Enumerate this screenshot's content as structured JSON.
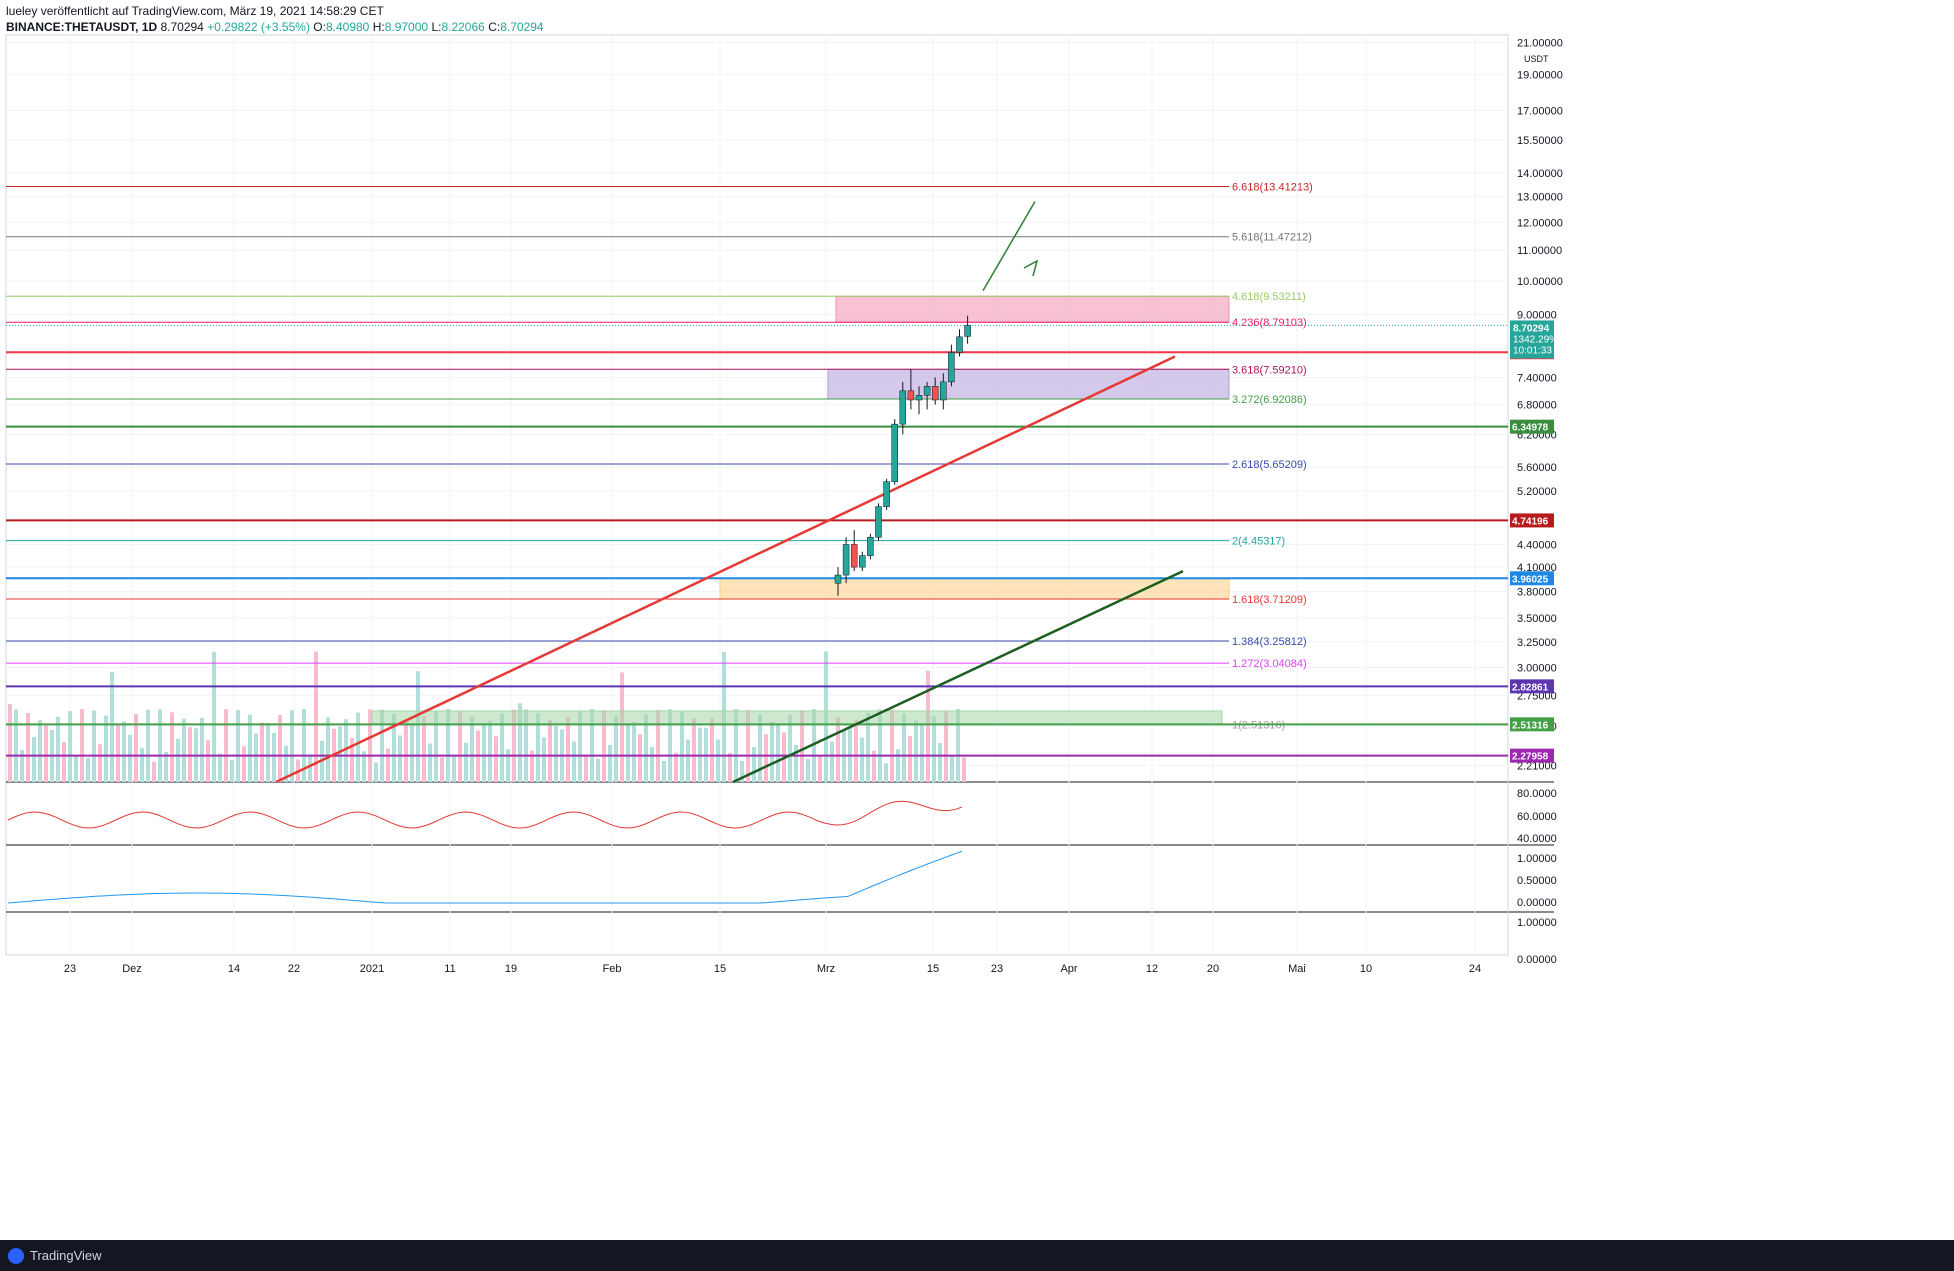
{
  "header": {
    "line1": "lueley veröffentlicht auf TradingView.com, März 19, 2021 14:58:29 CET",
    "symbol": "BINANCE:THETAUSDT, 1D",
    "price": "8.70294",
    "change": "+0.29822 (+3.55%)",
    "o_label": "O:",
    "o": "8.40980",
    "h_label": "H:",
    "h": "8.97000",
    "l_label": "L:",
    "l": "8.22066",
    "c_label": "C:",
    "c": "8.70294"
  },
  "footer": {
    "brand": "TradingView"
  },
  "chart_data": {
    "type": "candlestick",
    "symbol": "BINANCE:THETAUSDT",
    "currency": "USDT",
    "scale": "log",
    "y_ticks": [
      "2.21000",
      "2.50000",
      "2.75000",
      "3.00000",
      "3.25000",
      "3.50000",
      "3.80000",
      "4.10000",
      "4.40000",
      "5.20000",
      "5.60000",
      "6.20000",
      "6.80000",
      "7.40000",
      "9.00000",
      "10.00000",
      "11.00000",
      "12.00000",
      "13.00000",
      "14.00000",
      "15.50000",
      "17.00000",
      "19.00000",
      "21.00000"
    ],
    "x_ticks": [
      "23",
      "Dez",
      "14",
      "22",
      "2021",
      "11",
      "19",
      "Feb",
      "15",
      "Mrz",
      "15",
      "23",
      "Apr",
      "12",
      "20",
      "Mai",
      "10",
      "24"
    ],
    "fib_levels": [
      {
        "label": "6.618(13.41213)",
        "value": 13.41213,
        "color": "#c62828"
      },
      {
        "label": "5.618(11.47212)",
        "value": 11.47212,
        "color": "#757575"
      },
      {
        "label": "4.618(9.53211)",
        "value": 9.53211,
        "color": "#9ccc65"
      },
      {
        "label": "4.236(8.79103)",
        "value": 8.79103,
        "color": "#e91e63"
      },
      {
        "label": "3.618(7.59210)",
        "value": 7.5921,
        "color": "#ad1457"
      },
      {
        "label": "3.272(6.92086)",
        "value": 6.92086,
        "color": "#43a047"
      },
      {
        "label": "2.618(5.65209)",
        "value": 5.65209,
        "color": "#3949ab"
      },
      {
        "label": "2(4.45317)",
        "value": 4.45317,
        "color": "#26a69a"
      },
      {
        "label": "1.618(3.71209)",
        "value": 3.71209,
        "color": "#e53935"
      },
      {
        "label": "1.384(3.25812)",
        "value": 3.25812,
        "color": "#3949ab"
      },
      {
        "label": "1.272(3.04084)",
        "value": 3.04084,
        "color": "#e040fb"
      },
      {
        "label": "1(2.51316)",
        "value": 2.51316,
        "color": "#9e9e9e"
      }
    ],
    "horizontal_levels": [
      {
        "label": "8.00573",
        "value": 8.00573,
        "color": "#f23645"
      },
      {
        "label": "6.34978",
        "value": 6.34978,
        "color": "#388e3c"
      },
      {
        "label": "4.74196",
        "value": 4.74196,
        "color": "#b71c1c"
      },
      {
        "label": "3.96025",
        "value": 3.96025,
        "color": "#1e88e5"
      },
      {
        "label": "2.82861",
        "value": 2.82861,
        "color": "#5e35b1"
      },
      {
        "label": "2.51316",
        "value": 2.51316,
        "color": "#43a047"
      },
      {
        "label": "2.27958",
        "value": 2.27958,
        "color": "#9c27b0"
      }
    ],
    "last_price": {
      "price": "8.70294",
      "percent": "1342.29%",
      "countdown": "10:01:33"
    },
    "zones": [
      {
        "name": "resistance-pink",
        "low": 8.79103,
        "high": 9.53211,
        "color": "#f48fb1"
      },
      {
        "name": "resistance-purple",
        "low": 6.92086,
        "high": 7.5921,
        "color": "#b39ddb"
      },
      {
        "name": "support-orange",
        "low": 3.71209,
        "high": 3.96025,
        "color": "#ffcc80"
      },
      {
        "name": "support-green",
        "low": 2.51316,
        "high": 2.62,
        "color": "#a5d6a7"
      }
    ],
    "candles_mar": [
      {
        "o": 3.9,
        "h": 4.1,
        "l": 3.75,
        "c": 4.0
      },
      {
        "o": 4.0,
        "h": 4.5,
        "l": 3.9,
        "c": 4.4
      },
      {
        "o": 4.4,
        "h": 4.6,
        "l": 4.05,
        "c": 4.1
      },
      {
        "o": 4.1,
        "h": 4.3,
        "l": 4.05,
        "c": 4.25
      },
      {
        "o": 4.25,
        "h": 4.55,
        "l": 4.2,
        "c": 4.5
      },
      {
        "o": 4.5,
        "h": 5.0,
        "l": 4.45,
        "c": 4.95
      },
      {
        "o": 4.95,
        "h": 5.4,
        "l": 4.9,
        "c": 5.35
      },
      {
        "o": 5.35,
        "h": 6.5,
        "l": 5.3,
        "c": 6.4
      },
      {
        "o": 6.4,
        "h": 7.3,
        "l": 6.2,
        "c": 7.1
      },
      {
        "o": 7.1,
        "h": 7.6,
        "l": 6.7,
        "c": 6.9
      },
      {
        "o": 6.9,
        "h": 7.2,
        "l": 6.6,
        "c": 7.0
      },
      {
        "o": 7.0,
        "h": 7.3,
        "l": 6.7,
        "c": 7.2
      },
      {
        "o": 7.2,
        "h": 7.4,
        "l": 6.8,
        "c": 6.9
      },
      {
        "o": 6.9,
        "h": 7.5,
        "l": 6.7,
        "c": 7.3
      },
      {
        "o": 7.3,
        "h": 8.2,
        "l": 7.2,
        "c": 8.0
      },
      {
        "o": 8.0,
        "h": 8.6,
        "l": 7.9,
        "c": 8.4
      },
      {
        "o": 8.41,
        "h": 8.97,
        "l": 8.22,
        "c": 8.70294
      }
    ],
    "rsi_ticks": [
      "80.0000",
      "60.0000",
      "40.0000"
    ],
    "macd_ticks": [
      "1.00000",
      "0.50000",
      "0.00000"
    ],
    "osc_ticks": [
      "1.00000",
      "0.00000"
    ],
    "colors": {
      "up": "#26a69a",
      "down": "#ef5350",
      "grid": "#f0f3fa",
      "trend_red": "#e53935",
      "trend_green": "#1b5e20"
    }
  }
}
